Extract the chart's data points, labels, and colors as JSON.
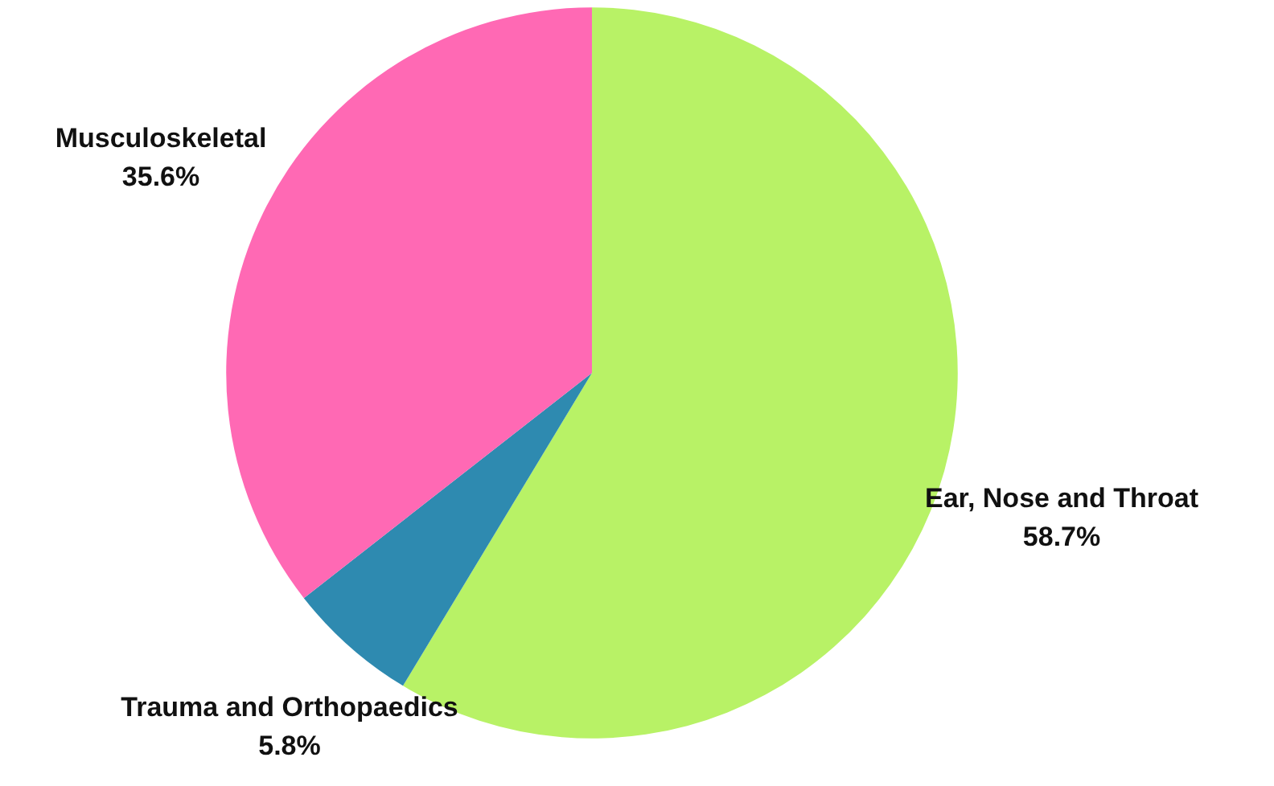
{
  "chart_data": {
    "type": "pie",
    "categories": [
      "Ear, Nose and Throat",
      "Trauma and Orthopaedics",
      "Musculoskeletal"
    ],
    "values": [
      58.7,
      5.8,
      35.6
    ],
    "colors": [
      "#b8f266",
      "#2e8ab0",
      "#ff69b4"
    ],
    "value_labels": [
      "58.7%",
      "5.8%",
      "35.6%"
    ],
    "legend": false
  }
}
